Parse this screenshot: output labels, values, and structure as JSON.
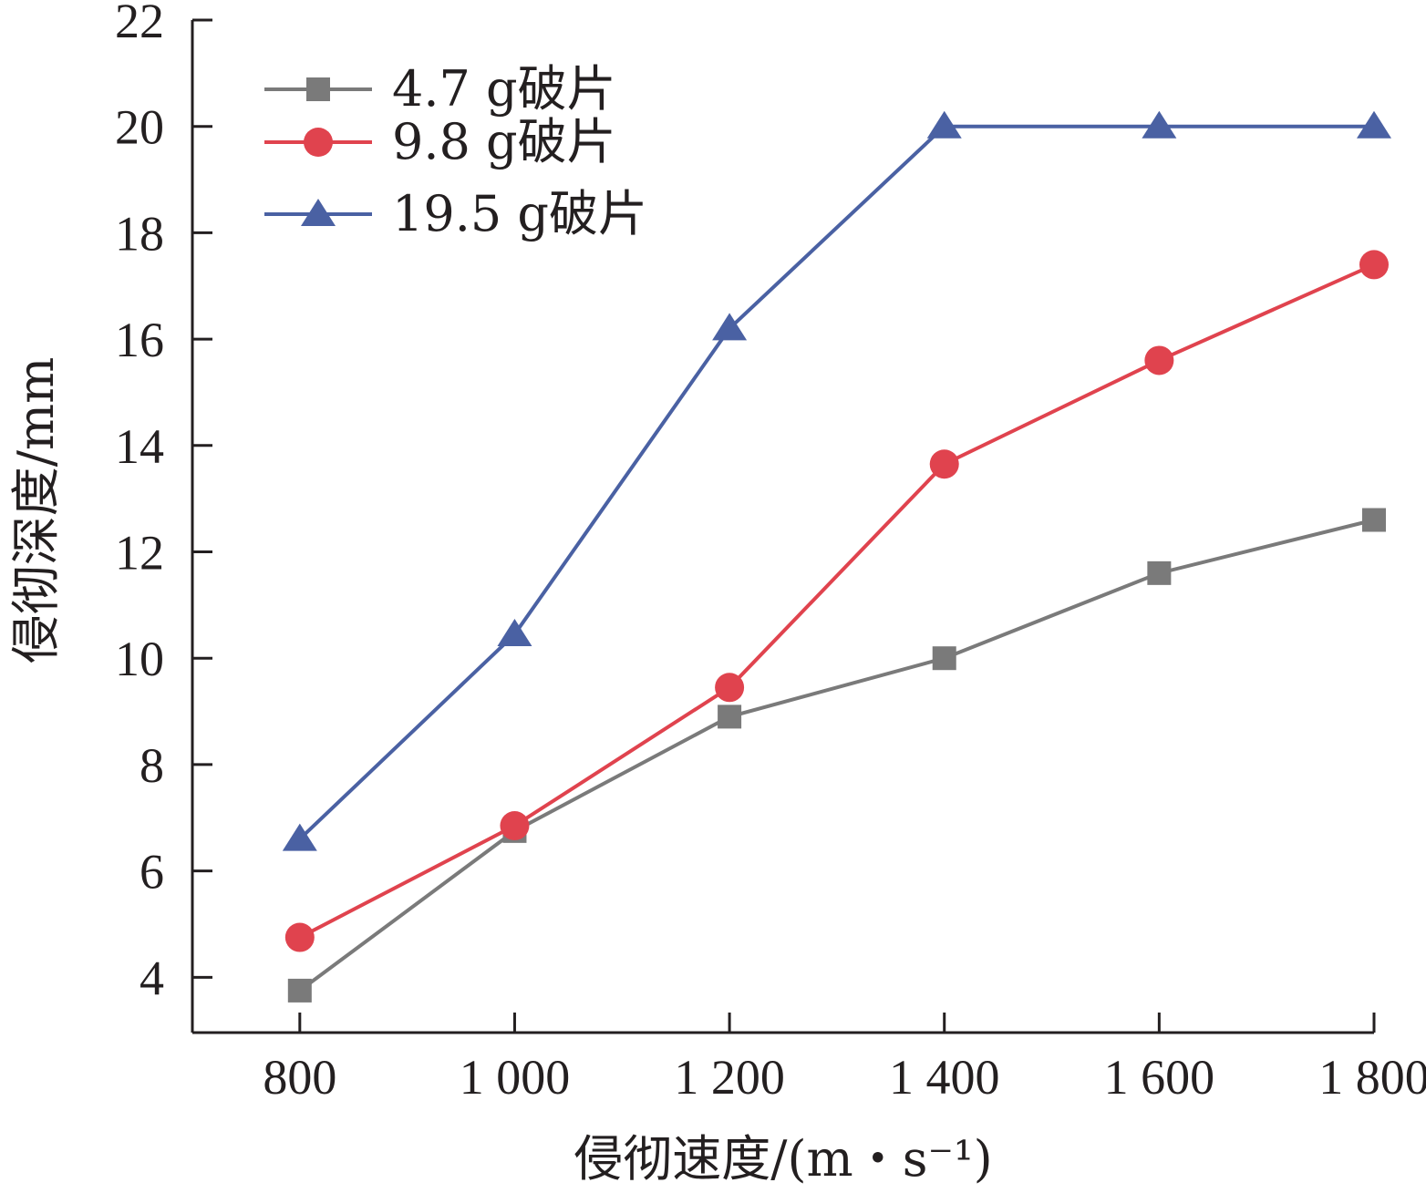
{
  "chart_data": {
    "type": "line",
    "x": [
      800,
      1000,
      1200,
      1400,
      1600,
      1800
    ],
    "x_tick_labels": [
      "800",
      "1 000",
      "1 200",
      "1 400",
      "1 600",
      "1 800"
    ],
    "y_ticks": [
      4,
      6,
      8,
      10,
      12,
      14,
      16,
      18,
      20,
      22
    ],
    "xlim": [
      700,
      1800
    ],
    "ylim": [
      2.96,
      22
    ],
    "xlabel": "侵彻速度/(m・s⁻¹)",
    "ylabel": "侵彻深度/mm",
    "grid": false,
    "legend_position": "top-left",
    "series": [
      {
        "name": "4.7 g破片",
        "color": "#7a7a7a",
        "marker": "square",
        "values": [
          3.75,
          6.75,
          8.9,
          10.0,
          11.6,
          12.6
        ]
      },
      {
        "name": "9.8 g破片",
        "color": "#e0434e",
        "marker": "circle",
        "values": [
          4.75,
          6.85,
          9.45,
          13.65,
          15.6,
          17.4
        ]
      },
      {
        "name": "19.5 g破片",
        "color": "#4a61a3",
        "marker": "triangle",
        "values": [
          6.6,
          10.45,
          16.2,
          20.0,
          20.0,
          20.0
        ]
      }
    ]
  }
}
